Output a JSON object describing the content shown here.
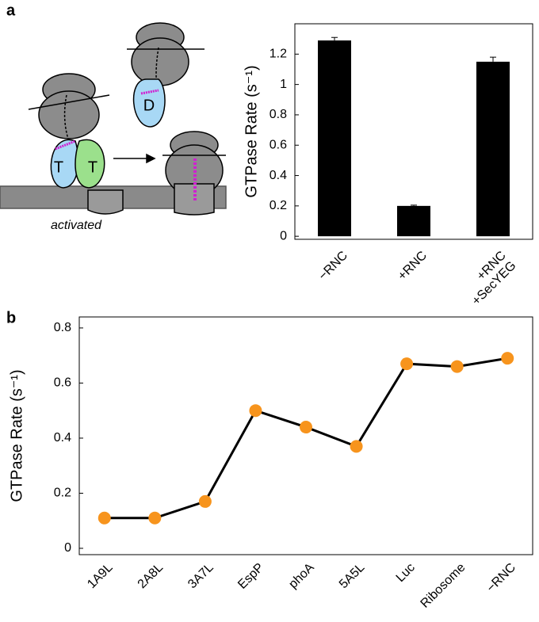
{
  "panel_labels": [
    "a",
    "b"
  ],
  "diagram": {
    "left_label": "T",
    "right_label": "T",
    "top_label": "D",
    "caption": "activated"
  },
  "chart_data": [
    {
      "type": "bar",
      "y_label": "GTPase Rate (s⁻¹)",
      "categories": [
        "−RNC",
        "+RNC",
        "+RNC\n+SecYEG"
      ],
      "values": [
        1.29,
        0.2,
        1.15
      ],
      "errors": [
        0.02,
        0.005,
        0.03
      ],
      "color": "#000000",
      "ylim": [
        -0.02,
        1.4
      ],
      "yticks": [
        0,
        0.2,
        0.4,
        0.6,
        0.8,
        1.0,
        1.2
      ]
    },
    {
      "type": "line",
      "y_label": "GTPase Rate (s⁻¹)",
      "categories": [
        "1A9L",
        "2A8L",
        "3A7L",
        "EspP",
        "phoA",
        "5A5L",
        "Luc",
        "Ribosome",
        "−RNC"
      ],
      "values": [
        0.11,
        0.11,
        0.17,
        0.5,
        0.44,
        0.37,
        0.67,
        0.66,
        0.69
      ],
      "errors": [
        null,
        null,
        null,
        null,
        null,
        null,
        0.01,
        0.005,
        0.015
      ],
      "color": "#f7941d",
      "line_color": "#000000",
      "ylim": [
        -0.023,
        0.84
      ],
      "yticks": [
        0,
        0.2,
        0.4,
        0.6,
        0.8
      ]
    }
  ]
}
